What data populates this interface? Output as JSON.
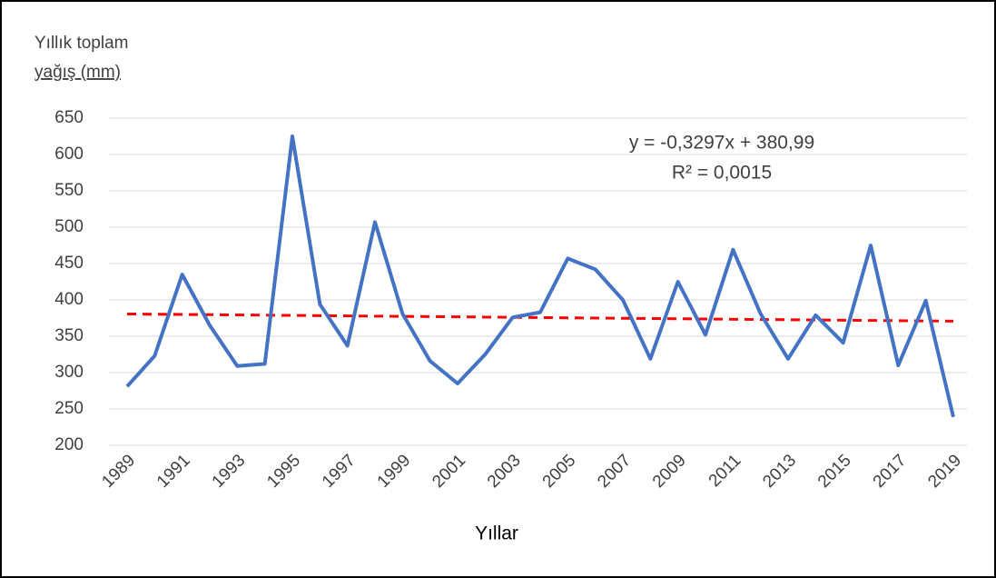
{
  "chart_data": {
    "type": "line",
    "y_label_lines": [
      "Yıllık toplam",
      "yağış (mm)"
    ],
    "x_label": "Yıllar",
    "categories": [
      "1989",
      null,
      "1991",
      null,
      "1993",
      null,
      "1995",
      null,
      "1997",
      null,
      "1999",
      null,
      "2001",
      null,
      "2003",
      null,
      "2005",
      null,
      "2007",
      null,
      "2009",
      null,
      "2011",
      null,
      "2013",
      null,
      "2015",
      null,
      "2017",
      null,
      "2019"
    ],
    "series": [
      {
        "name": "Yıllık toplam yağış",
        "color": "#4472c4",
        "values": [
          281,
          323,
          435,
          365,
          309,
          312,
          625,
          394,
          337,
          507,
          381,
          316,
          285,
          325,
          376,
          383,
          457,
          442,
          400,
          319,
          425,
          352,
          469,
          381,
          319,
          379,
          341,
          475,
          310,
          399,
          239
        ]
      }
    ],
    "trendline": {
      "slope": -0.3297,
      "intercept": 380.99,
      "color": "#ff0000",
      "equation": "y = -0,3297x + 380,99",
      "r_squared": "R² = 0,0015"
    },
    "ylim": [
      200,
      650
    ],
    "yticks": [
      200,
      250,
      300,
      350,
      400,
      450,
      500,
      550,
      600,
      650
    ],
    "grid": true
  }
}
